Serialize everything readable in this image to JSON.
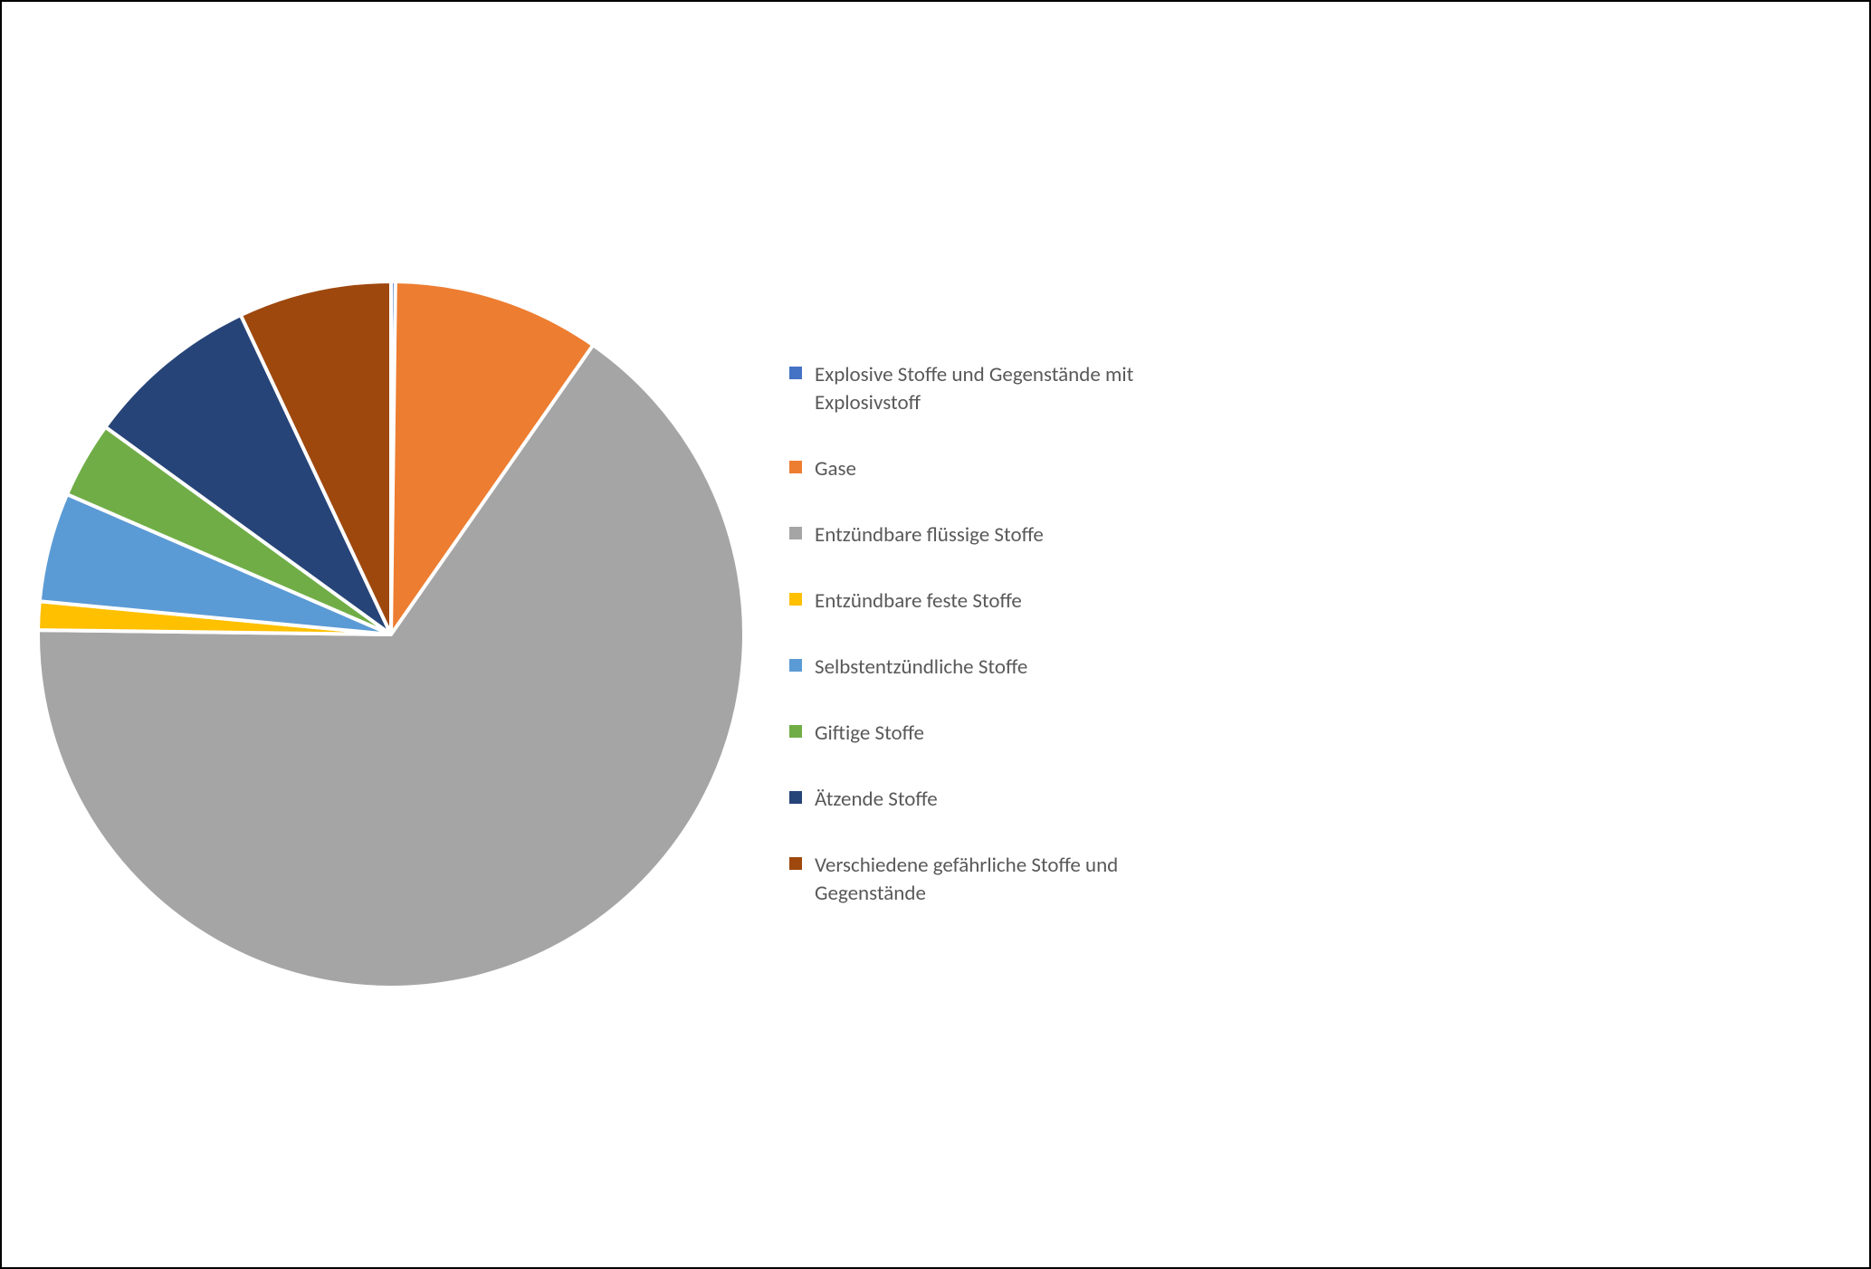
{
  "chart": {
    "type": "pie",
    "background_color": "#ffffff",
    "border_color": "#000000",
    "slice_stroke": "#ffffff",
    "slice_stroke_width": 4,
    "pie_radius": 390,
    "pie_diameter": 800,
    "legend_text_color": "#595959",
    "legend_fontsize": 23,
    "legend_swatch_size": 14,
    "start_angle_deg": -90,
    "slices_direction": "clockwise",
    "series": [
      {
        "label": "Explosive Stoffe und Gegenstände mit Explosivstoff",
        "value": 0.2,
        "color": "#4472c4"
      },
      {
        "label": "Gase",
        "value": 9.5,
        "color": "#ed7d31"
      },
      {
        "label": "Entzündbare flüssige Stoffe",
        "value": 65.5,
        "color": "#a5a5a5"
      },
      {
        "label": "Entzündbare feste Stoffe",
        "value": 1.3,
        "color": "#ffc000"
      },
      {
        "label": "Selbstentzündliche Stoffe",
        "value": 5.0,
        "color": "#5b9bd5"
      },
      {
        "label": "Giftige Stoffe",
        "value": 3.5,
        "color": "#70ad47"
      },
      {
        "label": "Ätzende Stoffe",
        "value": 8.0,
        "color": "#264478"
      },
      {
        "label": "Verschiedene gefährliche Stoffe und Gegenstände",
        "value": 7.0,
        "color": "#9e480e"
      }
    ]
  }
}
